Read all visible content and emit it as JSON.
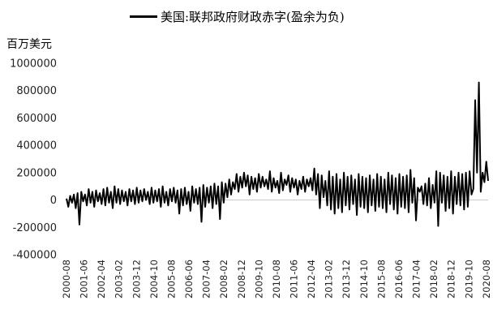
{
  "legend": {
    "label": "美国:联邦政府财政赤字(盈余为负)",
    "color": "#000000"
  },
  "unit_label": "百万美元",
  "chart_data": {
    "type": "line",
    "title": "",
    "ylabel": "百万美元",
    "ylim": [
      -400000,
      1000000
    ],
    "yticks": [
      -400000,
      -200000,
      0,
      200000,
      400000,
      600000,
      800000,
      1000000
    ],
    "ytick_labels": [
      "-400000",
      "-200000",
      "0",
      "200000",
      "400000",
      "600000",
      "800000",
      "1000000"
    ],
    "x_start": "2000-08",
    "x_end": "2020-09",
    "xtick_labels": [
      "2000-08",
      "2001-06",
      "2002-04",
      "2003-02",
      "2003-12",
      "2004-10",
      "2005-08",
      "2006-06",
      "2007-04",
      "2008-02",
      "2008-12",
      "2009-10",
      "2010-08",
      "2011-06",
      "2012-04",
      "2013-02",
      "2013-12",
      "2014-10",
      "2015-08",
      "2016-06",
      "2017-04",
      "2018-02",
      "2018-12",
      "2019-10",
      "2020-08"
    ],
    "series": [
      {
        "name": "美国:联邦政府财政赤字(盈余为负)",
        "color": "#000000",
        "values": [
          10000,
          -50000,
          30000,
          -20000,
          40000,
          -60000,
          50000,
          -180000,
          60000,
          -10000,
          40000,
          -40000,
          80000,
          -20000,
          60000,
          -50000,
          70000,
          -10000,
          50000,
          -30000,
          80000,
          -40000,
          90000,
          -20000,
          60000,
          -60000,
          100000,
          -20000,
          80000,
          -30000,
          70000,
          -10000,
          60000,
          -40000,
          80000,
          -10000,
          70000,
          -30000,
          90000,
          -20000,
          70000,
          -10000,
          80000,
          0,
          60000,
          -30000,
          90000,
          -20000,
          70000,
          -10000,
          80000,
          -50000,
          100000,
          -20000,
          60000,
          -40000,
          80000,
          -10000,
          90000,
          -20000,
          70000,
          -100000,
          80000,
          -40000,
          90000,
          -30000,
          60000,
          -80000,
          100000,
          -20000,
          80000,
          -30000,
          90000,
          -160000,
          110000,
          -50000,
          90000,
          -20000,
          100000,
          -60000,
          120000,
          -30000,
          100000,
          -140000,
          130000,
          -20000,
          120000,
          20000,
          150000,
          40000,
          130000,
          80000,
          190000,
          60000,
          170000,
          90000,
          200000,
          100000,
          180000,
          40000,
          170000,
          80000,
          160000,
          60000,
          190000,
          90000,
          170000,
          100000,
          150000,
          80000,
          210000,
          60000,
          160000,
          90000,
          140000,
          50000,
          200000,
          70000,
          150000,
          110000,
          180000,
          60000,
          160000,
          90000,
          150000,
          40000,
          140000,
          80000,
          170000,
          60000,
          150000,
          100000,
          160000,
          70000,
          230000,
          40000,
          190000,
          -60000,
          180000,
          20000,
          140000,
          -40000,
          210000,
          -70000,
          170000,
          -100000,
          190000,
          -60000,
          150000,
          -90000,
          200000,
          -40000,
          170000,
          -70000,
          180000,
          -30000,
          150000,
          -110000,
          190000,
          -50000,
          170000,
          -60000,
          160000,
          -90000,
          180000,
          -40000,
          150000,
          -80000,
          190000,
          -50000,
          170000,
          -60000,
          150000,
          -90000,
          200000,
          -30000,
          180000,
          -70000,
          160000,
          -100000,
          190000,
          -50000,
          170000,
          -60000,
          180000,
          -90000,
          220000,
          -20000,
          160000,
          -150000,
          90000,
          60000,
          100000,
          -30000,
          120000,
          -40000,
          160000,
          -60000,
          110000,
          -20000,
          210000,
          -190000,
          200000,
          -20000,
          180000,
          -80000,
          170000,
          -60000,
          210000,
          -100000,
          170000,
          -30000,
          200000,
          -40000,
          190000,
          -70000,
          200000,
          -50000,
          210000,
          40000,
          80000,
          730000,
          200000,
          860000,
          60000,
          200000,
          130000,
          280000,
          140000
        ]
      }
    ]
  }
}
